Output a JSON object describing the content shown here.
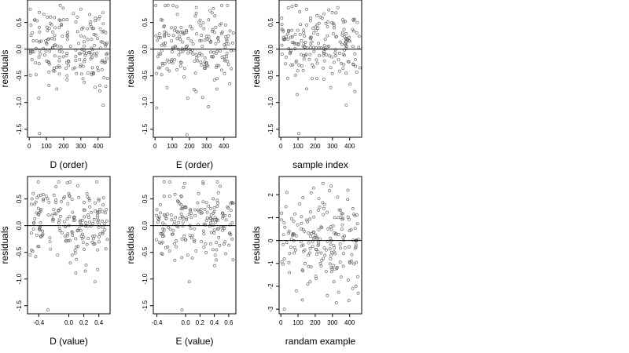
{
  "chart_data": [
    {
      "type": "scatter",
      "xlabel": "D (order)",
      "ylabel": "residuals",
      "xlim": [
        -10,
        470
      ],
      "ylim": [
        -1.65,
        0.92
      ],
      "xticks": [
        0,
        100,
        200,
        300,
        400
      ],
      "xtick_labels": [
        "0",
        "100",
        "200",
        "300",
        "400"
      ],
      "yticks": [
        -1.5,
        -1.0,
        -0.5,
        0.0,
        0.5
      ],
      "ytick_labels": [
        "-1.5",
        "-1.0",
        "-0.5",
        "0.0",
        "0.5"
      ],
      "hline": 0,
      "points": "residuals vs index, ~450 points",
      "sample_points": [
        [
          10,
          0.45
        ],
        [
          25,
          -0.05
        ],
        [
          40,
          -0.48
        ],
        [
          55,
          -0.92
        ],
        [
          60,
          0.32
        ],
        [
          85,
          0.65
        ],
        [
          100,
          0.12
        ],
        [
          115,
          -0.25
        ],
        [
          150,
          0.4
        ],
        [
          175,
          -0.15
        ],
        [
          200,
          0.55
        ],
        [
          220,
          -0.5
        ],
        [
          240,
          0.05
        ],
        [
          265,
          -0.35
        ],
        [
          280,
          0.6
        ],
        [
          300,
          0.25
        ],
        [
          320,
          -0.62
        ],
        [
          340,
          0.18
        ],
        [
          360,
          -0.1
        ],
        [
          385,
          0.58
        ],
        [
          400,
          -0.4
        ],
        [
          410,
          -0.78
        ],
        [
          425,
          0.32
        ],
        [
          440,
          0.1
        ],
        [
          455,
          -0.55
        ],
        [
          60,
          -1.58
        ],
        [
          115,
          -0.68
        ],
        [
          430,
          -1.05
        ],
        [
          180,
          0.82
        ],
        [
          300,
          0.75
        ]
      ]
    },
    {
      "type": "scatter",
      "xlabel": "E (order)",
      "ylabel": "residuals",
      "xlim": [
        -10,
        470
      ],
      "ylim": [
        -1.65,
        0.92
      ],
      "xticks": [
        0,
        100,
        200,
        300,
        400
      ],
      "xtick_labels": [
        "0",
        "100",
        "200",
        "300",
        "400"
      ],
      "yticks": [
        -1.5,
        -1.0,
        -0.5,
        0.0,
        0.5
      ],
      "ytick_labels": [
        "-1.5",
        "-1.0",
        "-0.5",
        "0.0",
        "0.5"
      ],
      "hline": 0,
      "sample_points": [
        [
          5,
          0.25
        ],
        [
          20,
          -0.35
        ],
        [
          35,
          0.55
        ],
        [
          50,
          0.1
        ],
        [
          70,
          -0.72
        ],
        [
          95,
          0.4
        ],
        [
          115,
          -0.2
        ],
        [
          130,
          0.65
        ],
        [
          150,
          -0.05
        ],
        [
          170,
          0.3
        ],
        [
          190,
          -0.92
        ],
        [
          210,
          0.15
        ],
        [
          235,
          -0.45
        ],
        [
          255,
          0.5
        ],
        [
          275,
          0.05
        ],
        [
          300,
          -0.3
        ],
        [
          320,
          0.72
        ],
        [
          345,
          -0.58
        ],
        [
          365,
          0.2
        ],
        [
          390,
          -0.15
        ],
        [
          410,
          0.45
        ],
        [
          435,
          -0.65
        ],
        [
          455,
          0.3
        ],
        [
          185,
          -1.6
        ],
        [
          75,
          0.82
        ],
        [
          240,
          0.78
        ],
        [
          310,
          -1.08
        ]
      ]
    },
    {
      "type": "scatter",
      "xlabel": "sample index",
      "ylabel": "residuals",
      "xlim": [
        -10,
        470
      ],
      "ylim": [
        -1.65,
        0.92
      ],
      "xticks": [
        0,
        100,
        200,
        300,
        400
      ],
      "xtick_labels": [
        "0",
        "100",
        "200",
        "300",
        "400"
      ],
      "yticks": [
        -1.5,
        -1.0,
        -0.5,
        0.0,
        0.5
      ],
      "ytick_labels": [
        "-1.5",
        "-1.0",
        "-0.5",
        "0.0",
        "0.5"
      ],
      "hline": 0,
      "sample_points": [
        [
          5,
          0.58
        ],
        [
          15,
          0.22
        ],
        [
          30,
          -0.15
        ],
        [
          45,
          0.35
        ],
        [
          60,
          -0.3
        ],
        [
          80,
          0.1
        ],
        [
          95,
          -0.85
        ],
        [
          110,
          0.7
        ],
        [
          130,
          -0.4
        ],
        [
          150,
          0.45
        ],
        [
          170,
          -0.1
        ],
        [
          190,
          0.3
        ],
        [
          210,
          -0.55
        ],
        [
          230,
          0.6
        ],
        [
          250,
          -0.05
        ],
        [
          270,
          0.25
        ],
        [
          290,
          -0.72
        ],
        [
          310,
          0.4
        ],
        [
          335,
          -0.2
        ],
        [
          360,
          0.55
        ],
        [
          380,
          -0.45
        ],
        [
          400,
          0.15
        ],
        [
          420,
          -0.28
        ],
        [
          445,
          0.5
        ],
        [
          460,
          -0.35
        ],
        [
          105,
          -1.58
        ],
        [
          380,
          -1.05
        ],
        [
          65,
          0.8
        ]
      ]
    },
    {
      "type": "scatter",
      "xlabel": "D (value)",
      "ylabel": "residuals",
      "xlim": [
        -0.55,
        0.55
      ],
      "ylim": [
        -1.65,
        0.92
      ],
      "xticks": [
        -0.4,
        0.0,
        0.2,
        0.4
      ],
      "xtick_labels": [
        "-0.4",
        "0.0",
        "0.2",
        "0.4"
      ],
      "yticks": [
        -1.5,
        -1.0,
        -0.5,
        0.0,
        0.5
      ],
      "ytick_labels": [
        "-1.5",
        "-1.0",
        "-0.5",
        "0.0",
        "0.5"
      ],
      "hline": 0,
      "sample_points": [
        [
          -0.5,
          0.4
        ],
        [
          -0.48,
          -0.48
        ],
        [
          -0.4,
          0.2
        ],
        [
          -0.35,
          -0.1
        ],
        [
          -0.3,
          0.55
        ],
        [
          -0.25,
          -0.3
        ],
        [
          -0.2,
          0.3
        ],
        [
          -0.15,
          -0.55
        ],
        [
          -0.1,
          0.45
        ],
        [
          -0.05,
          -0.2
        ],
        [
          0.0,
          0.6
        ],
        [
          0.02,
          -0.7
        ],
        [
          0.05,
          0.25
        ],
        [
          0.1,
          -0.4
        ],
        [
          0.12,
          0.75
        ],
        [
          0.18,
          0.1
        ],
        [
          0.22,
          -0.85
        ],
        [
          0.28,
          0.35
        ],
        [
          0.32,
          -0.2
        ],
        [
          0.4,
          0.5
        ],
        [
          0.45,
          -0.15
        ],
        [
          0.5,
          0.3
        ],
        [
          -0.28,
          -1.58
        ],
        [
          0.35,
          -1.05
        ],
        [
          -0.02,
          0.8
        ]
      ]
    },
    {
      "type": "scatter",
      "xlabel": "E (value)",
      "ylabel": "residuals",
      "xlim": [
        -0.45,
        0.7
      ],
      "ylim": [
        -1.65,
        0.92
      ],
      "xticks": [
        -0.4,
        0.0,
        0.2,
        0.4,
        0.6
      ],
      "xtick_labels": [
        "-0.4",
        "0.0",
        "0.2",
        "0.4",
        "0.6"
      ],
      "yticks": [
        -1.5,
        -1.0,
        -0.5,
        0.0,
        0.5
      ],
      "ytick_labels": [
        "-1.5",
        "-1.0",
        "-0.5",
        "0.0",
        "0.5"
      ],
      "hline": 0,
      "sample_points": [
        [
          -0.4,
          0.3
        ],
        [
          -0.35,
          -0.15
        ],
        [
          -0.3,
          0.55
        ],
        [
          -0.25,
          -0.4
        ],
        [
          -0.2,
          0.2
        ],
        [
          -0.15,
          -0.65
        ],
        [
          -0.1,
          0.45
        ],
        [
          -0.05,
          -0.25
        ],
        [
          0.0,
          0.35
        ],
        [
          0.03,
          -0.55
        ],
        [
          0.08,
          0.15
        ],
        [
          0.12,
          -0.3
        ],
        [
          0.18,
          0.6
        ],
        [
          0.25,
          -0.1
        ],
        [
          0.3,
          0.25
        ],
        [
          0.38,
          -0.45
        ],
        [
          0.45,
          0.1
        ],
        [
          0.55,
          -0.3
        ],
        [
          0.65,
          0.05
        ],
        [
          -0.05,
          -1.58
        ],
        [
          0.05,
          -1.05
        ],
        [
          -0.3,
          0.82
        ]
      ]
    },
    {
      "type": "scatter",
      "xlabel": "randam example",
      "ylabel": "residuals",
      "xlim": [
        -10,
        470
      ],
      "ylim": [
        -3.2,
        2.8
      ],
      "xticks": [
        0,
        100,
        200,
        300,
        400
      ],
      "xtick_labels": [
        "0",
        "100",
        "200",
        "300",
        "400"
      ],
      "yticks": [
        -3,
        -2,
        -1,
        0,
        1,
        2
      ],
      "ytick_labels": [
        "-3",
        "-2",
        "-1",
        "0",
        "1",
        "2"
      ],
      "hline": 0,
      "sample_points": [
        [
          5,
          1.2
        ],
        [
          20,
          -0.8
        ],
        [
          35,
          2.1
        ],
        [
          50,
          -1.4
        ],
        [
          70,
          0.3
        ],
        [
          90,
          -2.2
        ],
        [
          110,
          1.6
        ],
        [
          130,
          -0.2
        ],
        [
          150,
          0.9
        ],
        [
          170,
          -1.8
        ],
        [
          190,
          2.3
        ],
        [
          210,
          0.1
        ],
        [
          230,
          -1.0
        ],
        [
          250,
          1.4
        ],
        [
          270,
          -2.4
        ],
        [
          290,
          0.6
        ],
        [
          310,
          -0.5
        ],
        [
          330,
          1.9
        ],
        [
          350,
          -1.6
        ],
        [
          370,
          0.2
        ],
        [
          390,
          2.2
        ],
        [
          410,
          -0.9
        ],
        [
          430,
          1.1
        ],
        [
          450,
          -2.3
        ],
        [
          20,
          -3.0
        ],
        [
          125,
          -2.6
        ],
        [
          245,
          2.5
        ]
      ]
    }
  ]
}
